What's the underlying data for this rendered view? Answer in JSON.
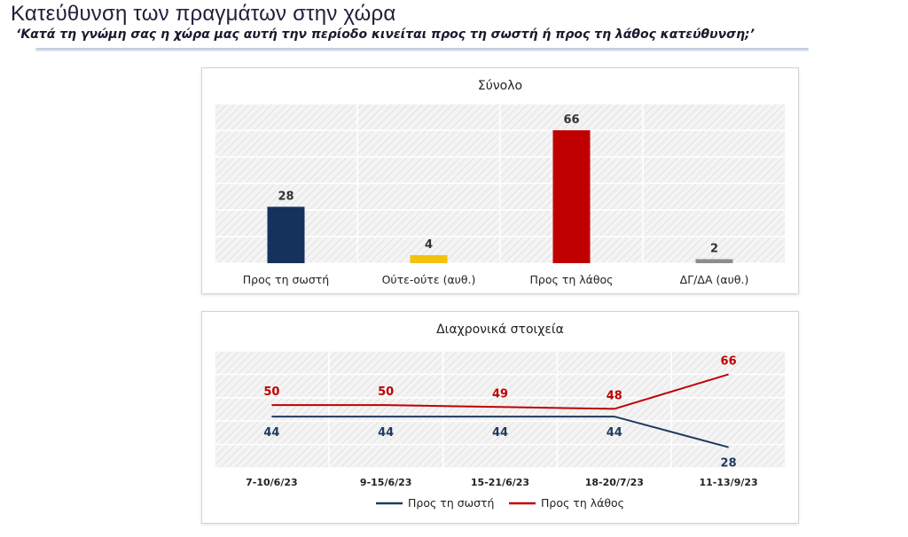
{
  "header": {
    "title": "Κατεύθυνση των πραγμάτων στην χώρα",
    "subtitle": "‘Κατά τη γνώμη σας η χώρα μας αυτή την περίοδο κινείται προς τη σωστή ή προς τη λάθος κατεύθυνση;’"
  },
  "chart_data": [
    {
      "type": "bar",
      "title": "Σύνολο",
      "categories": [
        "Προς τη σωστή",
        "Ούτε-ούτε (αυθ.)",
        "Προς τη λάθος",
        "ΔΓ/ΔΑ (αυθ.)"
      ],
      "values": [
        28,
        4,
        66,
        2
      ],
      "colors": [
        "#14325c",
        "#f2c20f",
        "#c00000",
        "#8c8c8c"
      ],
      "ylim": [
        0,
        66
      ],
      "grid": true
    },
    {
      "type": "line",
      "title": "Διαχρονικά στοιχεία",
      "categories": [
        "7-10/6/23",
        "9-15/6/23",
        "15-21/6/23",
        "18-20/7/23",
        "11-13/9/23"
      ],
      "series": [
        {
          "name": "Προς τη σωστή",
          "values": [
            44,
            44,
            44,
            44,
            28
          ],
          "color": "#1f3a5f"
        },
        {
          "name": "Προς τη λάθος",
          "values": [
            50,
            50,
            49,
            48,
            66
          ],
          "color": "#c00000"
        }
      ],
      "legend": "bottom",
      "grid": true
    }
  ]
}
